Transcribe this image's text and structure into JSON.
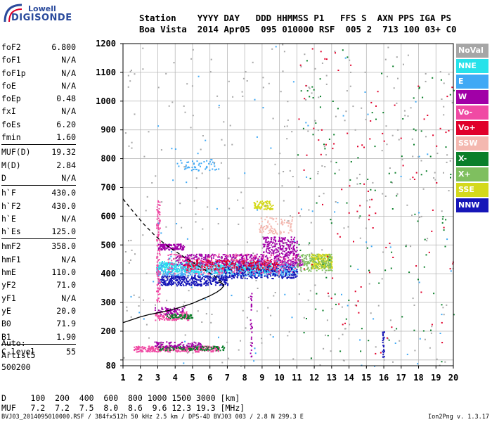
{
  "logo": {
    "line1": "Lowell",
    "line2": "DIGISONDE"
  },
  "header": {
    "labels_line": "Station    YYYY DAY   DDD HHMMSS P1   FFS S  AXN PPS IGA PS",
    "values_line": "Boa Vista  2014 Apr05  095 010000 RSF  005 2  713 100 03+ C0"
  },
  "params": [
    {
      "group": 1,
      "name": "foF2",
      "value": "6.800"
    },
    {
      "group": 1,
      "name": "foF1",
      "value": "N/A"
    },
    {
      "group": 1,
      "name": "foF1p",
      "value": "N/A"
    },
    {
      "group": 1,
      "name": "foE",
      "value": "N/A"
    },
    {
      "group": 1,
      "name": "foEp",
      "value": "0.48"
    },
    {
      "group": 1,
      "name": "fxI",
      "value": "N/A"
    },
    {
      "group": 1,
      "name": "foEs",
      "value": "6.20"
    },
    {
      "group": 1,
      "name": "fmin",
      "value": "1.60"
    },
    {
      "group": 2,
      "name": "MUF(D)",
      "value": "19.32"
    },
    {
      "group": 2,
      "name": "M(D)",
      "value": "2.84"
    },
    {
      "group": 2,
      "name": "D",
      "value": "N/A"
    },
    {
      "group": 3,
      "name": "h`F",
      "value": "430.0"
    },
    {
      "group": 3,
      "name": "h`F2",
      "value": "430.0"
    },
    {
      "group": 3,
      "name": "h`E",
      "value": "N/A"
    },
    {
      "group": 3,
      "name": "h`Es",
      "value": "125.0"
    },
    {
      "group": 4,
      "name": "hmF2",
      "value": "358.0"
    },
    {
      "group": 4,
      "name": "hmF1",
      "value": "N/A"
    },
    {
      "group": 4,
      "name": "hmE",
      "value": "110.0"
    },
    {
      "group": 4,
      "name": "yF2",
      "value": "71.0"
    },
    {
      "group": 4,
      "name": "yF1",
      "value": "N/A"
    },
    {
      "group": 4,
      "name": "yE",
      "value": "20.0"
    },
    {
      "group": 4,
      "name": "B0",
      "value": "71.9"
    },
    {
      "group": 4,
      "name": "B1",
      "value": "1.90"
    },
    {
      "group": 5,
      "name": "C-level",
      "value": "55"
    }
  ],
  "auto": {
    "label": "Auto:",
    "scaler": "Artist5",
    "version": "500200"
  },
  "bottom": {
    "d_line": "D     100  200  400  600  800 1000 1500 3000 [km]",
    "muf_line": "MUF   7.2  7.2  7.5  8.0  8.6  9.6 12.3 19.3 [MHz]"
  },
  "footer": {
    "left": "BVJ03_2014095010000.RSF / 384fx512h 50 kHz 2.5 km / DPS-4D BVJ03 003 / 2.8 N 299.3 E",
    "right": "Ion2Png v. 1.3.17"
  },
  "legend": [
    {
      "label": "NoVal",
      "color": "#a6a6a6",
      "text_color": "#ffffff"
    },
    {
      "label": "NNE",
      "color": "#27e2ea",
      "text_color": "#ffffff"
    },
    {
      "label": "E",
      "color": "#3fa9f5",
      "text_color": "#ffffff"
    },
    {
      "label": "W",
      "color": "#a100a7",
      "text_color": "#ffffff"
    },
    {
      "label": "Vo-",
      "color": "#f04aa4",
      "text_color": "#ffffff"
    },
    {
      "label": "Vo+",
      "color": "#e0002a",
      "text_color": "#ffffff"
    },
    {
      "label": "SSW",
      "color": "#f4b8b0",
      "text_color": "#ffffff"
    },
    {
      "label": "X-",
      "color": "#0a7f2a",
      "text_color": "#ffffff"
    },
    {
      "label": "X+",
      "color": "#7fbf5f",
      "text_color": "#ffffff"
    },
    {
      "label": "SSE",
      "color": "#d4d91c",
      "text_color": "#ffffff"
    },
    {
      "label": "NNW",
      "color": "#1616b8",
      "text_color": "#ffffff"
    }
  ],
  "chart_data": {
    "type": "scatter",
    "xlim": [
      1,
      20
    ],
    "ylim": [
      80,
      1200
    ],
    "x_ticks": [
      1,
      2,
      3,
      4,
      5,
      6,
      7,
      8,
      9,
      10,
      11,
      12,
      13,
      14,
      15,
      16,
      17,
      18,
      19,
      20
    ],
    "y_ticks": [
      80,
      100,
      200,
      300,
      400,
      500,
      600,
      700,
      800,
      900,
      1000,
      1100,
      1200
    ],
    "y_labeled_ticks": [
      80,
      200,
      300,
      400,
      500,
      600,
      700,
      800,
      900,
      1000,
      1100,
      1200
    ],
    "grid": true,
    "clusters": [
      {
        "color": "#3fa9f5",
        "x": [
          2.9,
          11.0
        ],
        "y": [
          395,
          440
        ],
        "n": 700
      },
      {
        "color": "#27e2ea",
        "x": [
          2.9,
          9.5
        ],
        "y": [
          405,
          445
        ],
        "n": 400
      },
      {
        "color": "#a100a7",
        "x": [
          4.0,
          11.3
        ],
        "y": [
          430,
          470
        ],
        "n": 450
      },
      {
        "color": "#1616b8",
        "x": [
          3.0,
          7.0
        ],
        "y": [
          360,
          395
        ],
        "n": 350
      },
      {
        "color": "#1616b8",
        "x": [
          6.8,
          11.0
        ],
        "y": [
          385,
          430
        ],
        "n": 250
      },
      {
        "color": "#e0002a",
        "x": [
          4.5,
          10.0
        ],
        "y": [
          415,
          450
        ],
        "n": 220
      },
      {
        "color": "#f04aa4",
        "x": [
          3.5,
          11.0
        ],
        "y": [
          400,
          470
        ],
        "n": 220
      },
      {
        "color": "#d4d91c",
        "x": [
          11.8,
          13.0
        ],
        "y": [
          420,
          470
        ],
        "n": 220
      },
      {
        "color": "#7fbf5f",
        "x": [
          11.0,
          13.0
        ],
        "y": [
          410,
          470
        ],
        "n": 150
      },
      {
        "color": "#a100a7",
        "x": [
          3.0,
          4.5
        ],
        "y": [
          485,
          505
        ],
        "n": 120
      },
      {
        "color": "#a100a7",
        "x": [
          9.0,
          11.0
        ],
        "y": [
          470,
          530
        ],
        "n": 180
      },
      {
        "color": "#f4b8b0",
        "x": [
          8.8,
          10.8
        ],
        "y": [
          540,
          600
        ],
        "n": 90
      },
      {
        "color": "#d4d91c",
        "x": [
          8.5,
          9.6
        ],
        "y": [
          625,
          655
        ],
        "n": 80
      },
      {
        "color": "#3fa9f5",
        "x": [
          4.0,
          6.5
        ],
        "y": [
          760,
          800
        ],
        "n": 50
      },
      {
        "color": "#f04aa4",
        "x": [
          2.8,
          4.8
        ],
        "y": [
          240,
          270
        ],
        "n": 120
      },
      {
        "color": "#0a7f2a",
        "x": [
          3.5,
          5.0
        ],
        "y": [
          245,
          262
        ],
        "n": 60
      },
      {
        "color": "#a100a7",
        "x": [
          2.8,
          4.5
        ],
        "y": [
          260,
          285
        ],
        "n": 60
      },
      {
        "color": "#f04aa4",
        "x": [
          1.6,
          6.5
        ],
        "y": [
          130,
          150
        ],
        "n": 300
      },
      {
        "color": "#0a7f2a",
        "x": [
          3.0,
          6.8
        ],
        "y": [
          135,
          150
        ],
        "n": 120
      },
      {
        "color": "#a100a7",
        "x": [
          2.8,
          5.5
        ],
        "y": [
          145,
          165
        ],
        "n": 90
      },
      {
        "color": "#f04aa4",
        "x": [
          2.9,
          3.1
        ],
        "y": [
          300,
          660
        ],
        "n": 120
      },
      {
        "color": "#a100a7",
        "x": [
          8.3,
          8.4
        ],
        "y": [
          110,
          340
        ],
        "n": 30
      },
      {
        "color": "#1616b8",
        "x": [
          15.9,
          16.0
        ],
        "y": [
          110,
          200
        ],
        "n": 25
      },
      {
        "color": "#a6a6a6",
        "x": [
          1.0,
          20.0
        ],
        "y": [
          80,
          1200
        ],
        "n": 350
      },
      {
        "color": "#0a7f2a",
        "x": [
          11.0,
          20.0
        ],
        "y": [
          80,
          1200
        ],
        "n": 120
      },
      {
        "color": "#e0002a",
        "x": [
          11.0,
          20.0
        ],
        "y": [
          80,
          1200
        ],
        "n": 100
      },
      {
        "color": "#3fa9f5",
        "x": [
          1.0,
          20.0
        ],
        "y": [
          80,
          1200
        ],
        "n": 80
      }
    ],
    "curves": [
      {
        "style": "dashed",
        "color": "#000000",
        "x": [
          1.0,
          1.6,
          2.2,
          2.8,
          3.4,
          4.0,
          4.6,
          5.2,
          5.8,
          6.3,
          6.6,
          6.8
        ],
        "y": [
          660,
          615,
          572,
          535,
          503,
          478,
          455,
          432,
          410,
          390,
          375,
          360
        ]
      },
      {
        "style": "solid",
        "color": "#000000",
        "x": [
          1.0,
          1.5,
          2.0,
          2.5,
          3.0,
          3.5,
          4.0,
          4.5,
          5.0,
          5.5,
          6.0,
          6.4,
          6.65,
          6.8,
          6.7,
          6.5
        ],
        "y": [
          230,
          240,
          250,
          258,
          264,
          270,
          278,
          287,
          297,
          310,
          323,
          336,
          347,
          358,
          366,
          372
        ]
      }
    ]
  }
}
